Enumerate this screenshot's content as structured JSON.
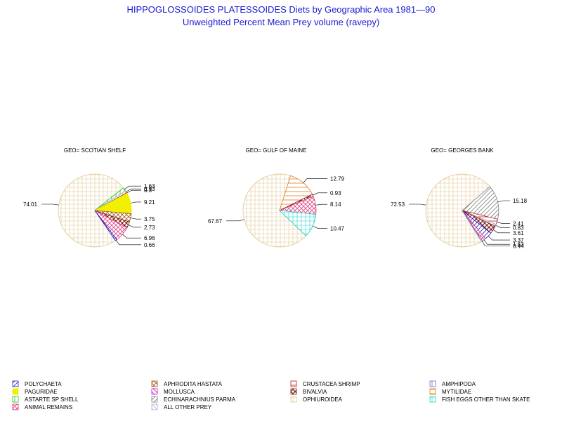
{
  "chart_data": {
    "type": "pie",
    "title": "HIPPOGLOSSOIDES PLATESSOIDES Diets by Geographic Area 1981—90",
    "subtitle": "Unweighted Percent Mean Prey volume (ravepy)",
    "categories": [
      "POLYCHAETA",
      "APHRODITA HASTATA",
      "CRUSTACEA SHRIMP",
      "AMPHIPODA",
      "PAGURIDAE",
      "MOLLUSCA",
      "BIVALVIA",
      "MYTILIDAE",
      "ASTARTE SP SHELL",
      "ECHINARACHNIUS PARMA",
      "OPHIUROIDEA",
      "FISH EGGS OTHER THAN SKATE",
      "ANIMAL REMAINS",
      "ALL OTHER PREY"
    ],
    "legend_colors": [
      "#2020c0",
      "#a05a20",
      "#c02020",
      "#8060b0",
      "#f0f000",
      "#c020c0",
      "#802020",
      "#e08020",
      "#20c020",
      "#808080",
      "#e0c890",
      "#20d0d0",
      "#e04080",
      "#b0b0d8"
    ],
    "legend_patterns": [
      "slash",
      "cross",
      "hline",
      "vline",
      "solid",
      "back",
      "xhatch",
      "hline",
      "vline",
      "slash",
      "grid",
      "grid",
      "cross",
      "back"
    ],
    "pies": [
      {
        "title": "GEO= SCOTIAN SHELF",
        "slices": [
          {
            "category": "OPHIUROIDEA",
            "value": 74.01,
            "label": "74.01"
          },
          {
            "category": "ASTARTE SP SHELL",
            "value": 1.63,
            "label": "1.63"
          },
          {
            "category": "ALL OTHER PREY",
            "value": 0.93,
            "label": "0.93"
          },
          {
            "category": "CRUSTACEA SHRIMP",
            "value": 0.3,
            "label": "0.3"
          },
          {
            "category": "PAGURIDAE",
            "value": 9.21,
            "label": "9.21"
          },
          {
            "category": "APHRODITA HASTATA",
            "value": 3.75,
            "label": "3.75"
          },
          {
            "category": "BIVALVIA",
            "value": 2.73,
            "label": "2.73"
          },
          {
            "category": "ANIMAL REMAINS",
            "value": 6.96,
            "label": "6.96"
          },
          {
            "category": "POLYCHAETA",
            "value": 0.66,
            "label": "0.66"
          }
        ]
      },
      {
        "title": "GEO= GULF OF MAINE",
        "slices": [
          {
            "category": "OPHIUROIDEA",
            "value": 67.67,
            "label": "67.67"
          },
          {
            "category": "MYTILIDAE",
            "value": 12.79,
            "label": "12.79"
          },
          {
            "category": "BIVALVIA",
            "value": 0.93,
            "label": "0.93"
          },
          {
            "category": "ANIMAL REMAINS",
            "value": 8.14,
            "label": "8.14"
          },
          {
            "category": "FISH EGGS OTHER THAN SKATE",
            "value": 10.47,
            "label": "10.47"
          }
        ]
      },
      {
        "title": "GEO= GEORGES BANK",
        "slices": [
          {
            "category": "OPHIUROIDEA",
            "value": 72.53,
            "label": "72.53"
          },
          {
            "category": "ECHINARACHNIUS PARMA",
            "value": 15.18,
            "label": "15.18"
          },
          {
            "category": "CRUSTACEA SHRIMP",
            "value": 2.41,
            "label": "2.41"
          },
          {
            "category": "ALL OTHER PREY",
            "value": 0.83,
            "label": "0.83"
          },
          {
            "category": "BIVALVIA",
            "value": 3.61,
            "label": "3.61"
          },
          {
            "category": "POLYCHAETA",
            "value": 3.37,
            "label": "3.37"
          },
          {
            "category": "ANIMAL REMAINS",
            "value": 1.63,
            "label": "1.63"
          },
          {
            "category": "AMPHIPODA",
            "value": 0.44,
            "label": "0.44"
          }
        ]
      }
    ]
  }
}
